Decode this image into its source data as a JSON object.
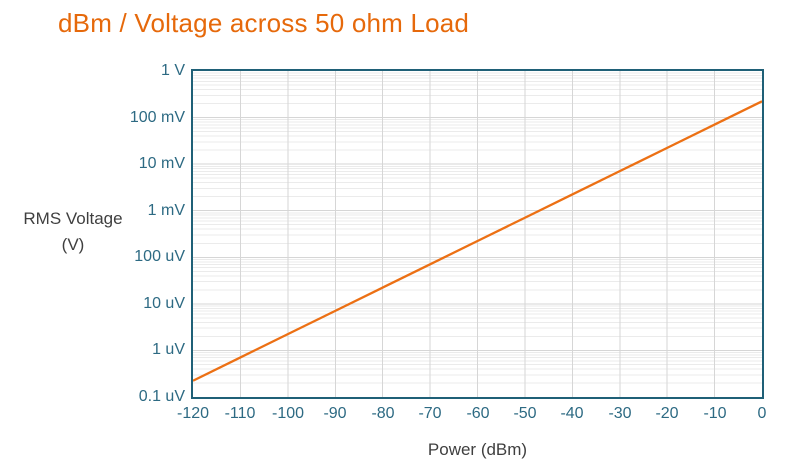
{
  "page": {
    "background": "#FFFFFF"
  },
  "chart_data": {
    "type": "line",
    "title": "dBm / Voltage across 50 ohm Load",
    "xlabel": "Power (dBm)",
    "ylabel_lines": [
      "RMS Voltage",
      "(V)"
    ],
    "x_ticks": [
      -120,
      -110,
      -100,
      -90,
      -80,
      -70,
      -60,
      -50,
      -40,
      -30,
      -20,
      -10,
      0
    ],
    "x_tick_labels": [
      "-120",
      "-110",
      "-100",
      "-90",
      "-80",
      "-70",
      "-60",
      "-50",
      "-40",
      "-30",
      "-20",
      "-10",
      "0"
    ],
    "y_tick_labels": [
      "1 V",
      "100 mV",
      "10 mV",
      "1 mV",
      "100 uV",
      "10 uV",
      "1 uV",
      "0.1 uV"
    ],
    "y_tick_values": [
      1,
      0.1,
      0.01,
      0.001,
      0.0001,
      1e-05,
      1e-06,
      1e-07
    ],
    "xlim": [
      -120,
      0
    ],
    "ylim": [
      1e-07,
      1
    ],
    "y_scale": "log10",
    "grid": {
      "vertical_major": true,
      "horizontal_major": true,
      "horizontal_minor_mantissas": [
        2,
        3,
        4,
        5,
        6,
        7,
        8,
        9
      ]
    },
    "legend": "none",
    "series": [
      {
        "name": "RMS Voltage",
        "x": [
          -120,
          -110,
          -100,
          -90,
          -80,
          -70,
          -60,
          -50,
          -40,
          -30,
          -20,
          -10,
          0
        ],
        "y": [
          2.236e-07,
          7.071e-07,
          2.236e-06,
          7.071e-06,
          2.236e-05,
          7.071e-05,
          0.0002236,
          0.0007071,
          0.002236,
          0.007071,
          0.02236,
          0.07071,
          0.2236
        ]
      }
    ],
    "colors": {
      "title_text": "#E6690B",
      "line": "#EC7014",
      "plot_border": "#1F6077",
      "grid_major": "#D6D6D6",
      "grid_minor": "#EBEBEB",
      "tick_text": "#2D6A83",
      "axis_title_text": "#3F3F3F"
    }
  }
}
